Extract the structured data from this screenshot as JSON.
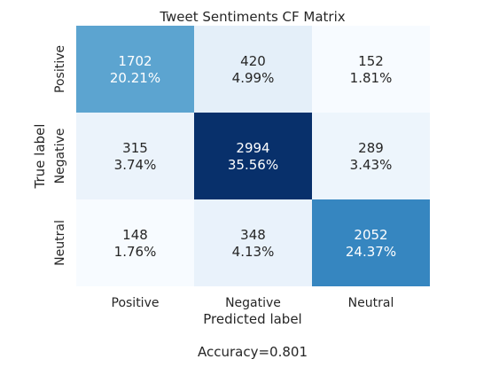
{
  "chart_data": {
    "type": "heatmap",
    "title": "Tweet Sentiments CF Matrix",
    "xlabel": "Predicted label",
    "ylabel": "True label",
    "x_categories": [
      "Positive",
      "Negative",
      "Neutral"
    ],
    "y_categories": [
      "Positive",
      "Negative",
      "Neutral"
    ],
    "values": [
      [
        1702,
        420,
        152
      ],
      [
        315,
        2994,
        289
      ],
      [
        148,
        348,
        2052
      ]
    ],
    "percentages": [
      [
        "20.21%",
        "4.99%",
        "1.81%"
      ],
      [
        "3.74%",
        "35.56%",
        "3.43%"
      ],
      [
        "1.76%",
        "4.13%",
        "24.37%"
      ]
    ],
    "colormap": "Blues",
    "colorbar": false,
    "footer": "Accuracy=0.801"
  }
}
